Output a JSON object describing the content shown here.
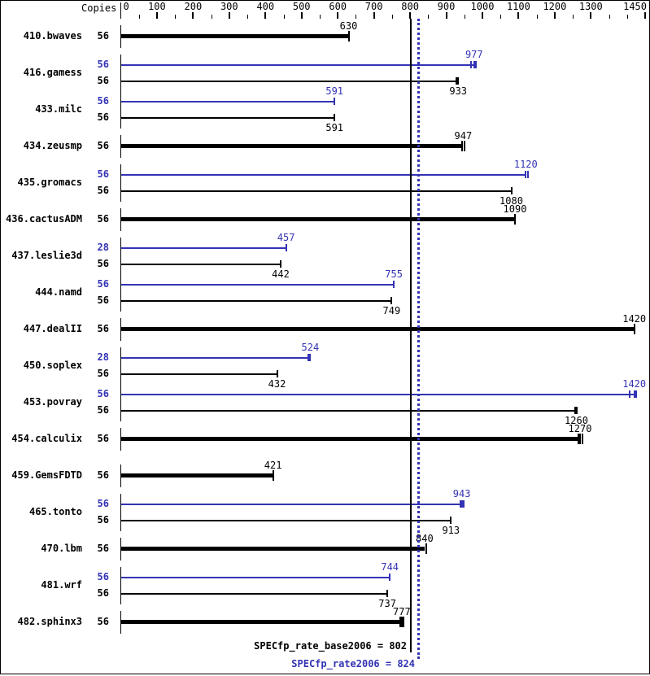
{
  "chart_data": {
    "type": "bar",
    "orientation": "horizontal",
    "copies_header": "Copies",
    "x_axis": {
      "min": 0,
      "max": 1450,
      "major_ticks": [
        0,
        100,
        200,
        300,
        400,
        500,
        600,
        700,
        800,
        900,
        1000,
        1100,
        1200,
        1300,
        1450
      ],
      "minor_ticks": [
        50,
        150,
        250,
        350,
        450,
        550,
        650,
        750,
        850,
        950,
        1050,
        1150,
        1250,
        1350,
        1400
      ]
    },
    "series_colors": {
      "base": "#000000",
      "peak": "#3333b4"
    },
    "benchmarks": [
      {
        "name": "410.bwaves",
        "bars": [
          {
            "series": "base",
            "copies": 56,
            "value": 630,
            "ticks": [
              630
            ]
          }
        ]
      },
      {
        "name": "416.gamess",
        "bars": [
          {
            "series": "peak",
            "copies": 56,
            "value": 977,
            "ticks": [
              969,
              977,
              982
            ]
          },
          {
            "series": "base",
            "copies": 56,
            "value": 933,
            "ticks": [
              929,
              933
            ]
          }
        ]
      },
      {
        "name": "433.milc",
        "bars": [
          {
            "series": "peak",
            "copies": 56,
            "value": 591,
            "ticks": [
              591
            ]
          },
          {
            "series": "base",
            "copies": 56,
            "value": 591,
            "ticks": [
              591
            ]
          }
        ]
      },
      {
        "name": "434.zeusmp",
        "bars": [
          {
            "series": "base",
            "copies": 56,
            "value": 947,
            "ticks": [
              944,
              951
            ]
          }
        ]
      },
      {
        "name": "435.gromacs",
        "bars": [
          {
            "series": "peak",
            "copies": 56,
            "value": 1120,
            "ticks": [
              1120,
              1126
            ]
          },
          {
            "series": "base",
            "copies": 56,
            "value": 1080,
            "ticks": [
              1080
            ]
          }
        ]
      },
      {
        "name": "436.cactusADM",
        "bars": [
          {
            "series": "base",
            "copies": 56,
            "value": 1090,
            "ticks": [
              1090
            ]
          }
        ]
      },
      {
        "name": "437.leslie3d",
        "bars": [
          {
            "series": "peak",
            "copies": 28,
            "value": 457,
            "ticks": [
              457
            ]
          },
          {
            "series": "base",
            "copies": 56,
            "value": 442,
            "ticks": [
              442
            ]
          }
        ]
      },
      {
        "name": "444.namd",
        "bars": [
          {
            "series": "peak",
            "copies": 56,
            "value": 755,
            "ticks": [
              755
            ]
          },
          {
            "series": "base",
            "copies": 56,
            "value": 749,
            "ticks": [
              749
            ]
          }
        ]
      },
      {
        "name": "447.dealII",
        "bars": [
          {
            "series": "base",
            "copies": 56,
            "value": 1420,
            "ticks": [
              1420
            ]
          }
        ]
      },
      {
        "name": "450.soplex",
        "bars": [
          {
            "series": "peak",
            "copies": 28,
            "value": 524,
            "ticks": [
              519,
              524
            ]
          },
          {
            "series": "base",
            "copies": 56,
            "value": 432,
            "ticks": [
              432
            ]
          }
        ]
      },
      {
        "name": "453.povray",
        "bars": [
          {
            "series": "peak",
            "copies": 56,
            "value": 1420,
            "ticks": [
              1408,
              1420,
              1426
            ]
          },
          {
            "series": "base",
            "copies": 56,
            "value": 1260,
            "ticks": [
              1256,
              1262
            ]
          }
        ]
      },
      {
        "name": "454.calculix",
        "bars": [
          {
            "series": "base",
            "copies": 56,
            "value": 1270,
            "ticks": [
              1266,
              1271,
              1276
            ]
          }
        ]
      },
      {
        "name": "459.GemsFDTD",
        "bars": [
          {
            "series": "base",
            "copies": 56,
            "value": 421,
            "ticks": [
              421
            ]
          }
        ]
      },
      {
        "name": "465.tonto",
        "bars": [
          {
            "series": "peak",
            "copies": 56,
            "value": 943,
            "ticks": [
              940,
              944,
              948
            ]
          },
          {
            "series": "base",
            "copies": 56,
            "value": 913,
            "ticks": [
              913
            ]
          }
        ]
      },
      {
        "name": "470.lbm",
        "bars": [
          {
            "series": "base",
            "copies": 56,
            "value": 840,
            "ticks": [
              845
            ]
          }
        ]
      },
      {
        "name": "481.wrf",
        "bars": [
          {
            "series": "peak",
            "copies": 56,
            "value": 744,
            "ticks": [
              744
            ]
          },
          {
            "series": "base",
            "copies": 56,
            "value": 737,
            "ticks": [
              737
            ]
          }
        ]
      },
      {
        "name": "482.sphinx3",
        "bars": [
          {
            "series": "base",
            "copies": 56,
            "value": 777,
            "ticks": [
              772,
              777,
              781
            ]
          }
        ]
      }
    ],
    "reference_lines": [
      {
        "series": "base",
        "label": "SPECfp_rate_base2006 = 802",
        "value": 802,
        "style": "solid",
        "color": "#000000"
      },
      {
        "series": "peak",
        "label": "SPECfp_rate2006 = 824",
        "value": 824,
        "style": "dotted",
        "color": "#3333b4"
      }
    ]
  }
}
